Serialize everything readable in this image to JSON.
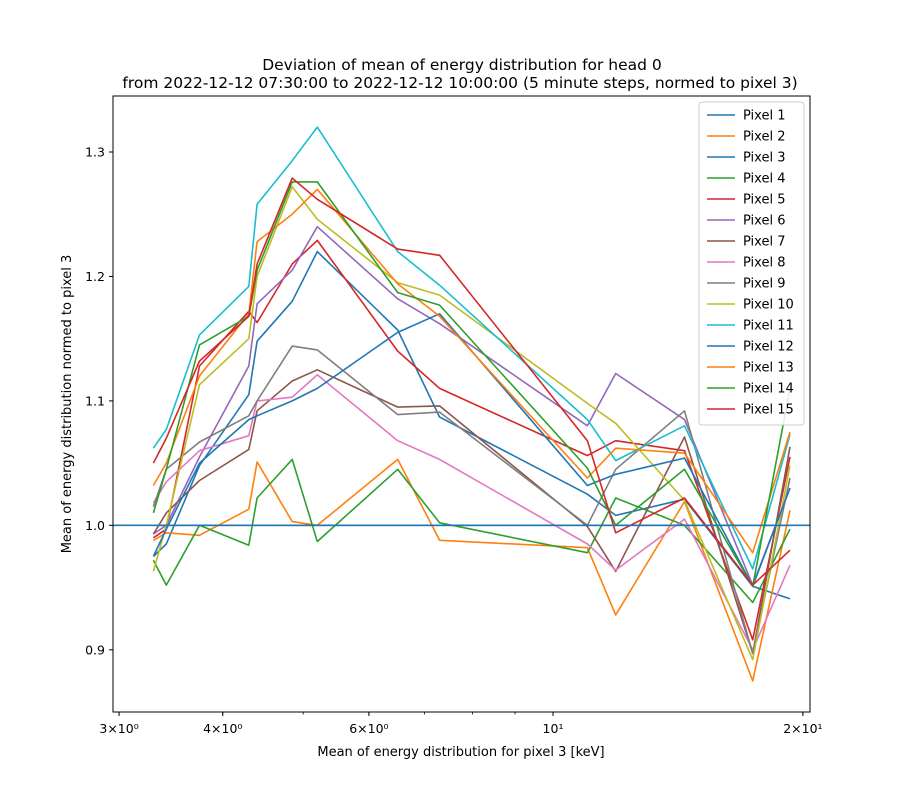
{
  "chart_data": {
    "type": "line",
    "title_line1": "Deviation of mean of energy distribution for head 0",
    "title_line2": "from 2022-12-12 07:30:00 to 2022-12-12 10:00:00 (5 minute steps, normed to pixel 3)",
    "xlabel": "Mean of energy distribution for pixel 3 [keV]",
    "ylabel": "Mean of energy distribution normed to pixel 3",
    "xscale": "log",
    "xlim": [
      2.95,
      20.4
    ],
    "ylim": [
      0.85,
      1.345
    ],
    "x_ticks": [
      {
        "value": 3,
        "label": "3×10⁰"
      },
      {
        "value": 4,
        "label": "4×10⁰"
      },
      {
        "value": 6,
        "label": "6×10⁰"
      },
      {
        "value": 10,
        "label": "10¹"
      },
      {
        "value": 20,
        "label": "2×10¹"
      }
    ],
    "y_ticks": [
      {
        "value": 0.9,
        "label": "0.9"
      },
      {
        "value": 1.0,
        "label": "1.0"
      },
      {
        "value": 1.1,
        "label": "1.1"
      },
      {
        "value": 1.2,
        "label": "1.2"
      },
      {
        "value": 1.3,
        "label": "1.3"
      }
    ],
    "hline": 1.0,
    "hline_color": "#1f77b4",
    "legend_position": "top-right",
    "grid": false,
    "series": [
      {
        "name": "Pixel 1",
        "color": "#1f77b4",
        "points": [
          [
            3.3,
            0.975
          ],
          [
            3.42,
            0.985
          ],
          [
            3.75,
            1.048
          ],
          [
            4.3,
            1.105
          ],
          [
            4.4,
            1.148
          ],
          [
            4.85,
            1.18
          ],
          [
            5.2,
            1.22
          ],
          [
            6.5,
            1.157
          ],
          [
            7.3,
            1.087
          ],
          [
            11.0,
            1.025
          ],
          [
            11.9,
            1.008
          ],
          [
            14.4,
            1.021
          ],
          [
            17.4,
            0.951
          ],
          [
            19.3,
            0.941
          ]
        ]
      },
      {
        "name": "Pixel 2",
        "color": "#ff7f0e",
        "points": [
          [
            3.3,
            0.988
          ],
          [
            3.42,
            0.994
          ],
          [
            3.75,
            0.992
          ],
          [
            4.3,
            1.013
          ],
          [
            4.4,
            1.051
          ],
          [
            4.85,
            1.003
          ],
          [
            5.2,
            1.0
          ],
          [
            6.5,
            1.053
          ],
          [
            7.3,
            0.988
          ],
          [
            11.0,
            0.982
          ],
          [
            11.9,
            0.928
          ],
          [
            14.4,
            1.019
          ],
          [
            17.4,
            0.875
          ],
          [
            19.3,
            1.012
          ]
        ]
      },
      {
        "name": "Pixel 3",
        "color": "#1f77b4",
        "points": [
          [
            3.3,
            1.0
          ],
          [
            19.3,
            1.0
          ]
        ]
      },
      {
        "name": "Pixel 4",
        "color": "#2ca02c",
        "points": [
          [
            3.3,
            0.972
          ],
          [
            3.42,
            0.952
          ],
          [
            3.75,
            1.0
          ],
          [
            4.3,
            0.984
          ],
          [
            4.4,
            1.022
          ],
          [
            4.85,
            1.053
          ],
          [
            5.2,
            0.987
          ],
          [
            6.5,
            1.045
          ],
          [
            7.3,
            1.002
          ],
          [
            11.0,
            0.978
          ],
          [
            11.9,
            1.022
          ],
          [
            14.4,
            1.0
          ],
          [
            17.4,
            0.938
          ],
          [
            19.3,
            0.997
          ]
        ]
      },
      {
        "name": "Pixel 5",
        "color": "#d62728",
        "points": [
          [
            3.3,
            0.99
          ],
          [
            3.42,
            0.997
          ],
          [
            3.75,
            1.128
          ],
          [
            4.3,
            1.172
          ],
          [
            4.4,
            1.163
          ],
          [
            4.85,
            1.21
          ],
          [
            5.2,
            1.229
          ],
          [
            6.5,
            1.14
          ],
          [
            7.3,
            1.11
          ],
          [
            11.0,
            1.056
          ],
          [
            11.9,
            1.068
          ],
          [
            14.4,
            1.06
          ],
          [
            17.4,
            0.908
          ],
          [
            19.3,
            1.055
          ]
        ]
      },
      {
        "name": "Pixel 6",
        "color": "#9467bd",
        "points": [
          [
            3.3,
            0.993
          ],
          [
            3.42,
            1.0
          ],
          [
            3.75,
            1.055
          ],
          [
            4.3,
            1.128
          ],
          [
            4.4,
            1.178
          ],
          [
            4.85,
            1.205
          ],
          [
            5.2,
            1.24
          ],
          [
            6.5,
            1.182
          ],
          [
            7.3,
            1.162
          ],
          [
            11.0,
            1.08
          ],
          [
            11.9,
            1.122
          ],
          [
            14.4,
            1.085
          ],
          [
            17.4,
            0.952
          ],
          [
            19.3,
            1.03
          ]
        ]
      },
      {
        "name": "Pixel 7",
        "color": "#8c564b",
        "points": [
          [
            3.3,
            0.993
          ],
          [
            3.42,
            1.01
          ],
          [
            3.75,
            1.036
          ],
          [
            4.3,
            1.061
          ],
          [
            4.4,
            1.092
          ],
          [
            4.85,
            1.116
          ],
          [
            5.2,
            1.125
          ],
          [
            6.5,
            1.095
          ],
          [
            7.3,
            1.096
          ],
          [
            11.0,
            0.999
          ],
          [
            11.9,
            0.963
          ],
          [
            14.4,
            1.071
          ],
          [
            17.4,
            0.897
          ],
          [
            19.3,
            1.063
          ]
        ]
      },
      {
        "name": "Pixel 8",
        "color": "#e377c2",
        "points": [
          [
            3.3,
            1.018
          ],
          [
            3.42,
            1.035
          ],
          [
            3.75,
            1.06
          ],
          [
            4.3,
            1.072
          ],
          [
            4.4,
            1.1
          ],
          [
            4.85,
            1.103
          ],
          [
            5.2,
            1.121
          ],
          [
            6.5,
            1.068
          ],
          [
            7.3,
            1.053
          ],
          [
            11.0,
            0.985
          ],
          [
            11.9,
            0.964
          ],
          [
            14.4,
            1.005
          ],
          [
            17.4,
            0.9
          ],
          [
            19.3,
            0.968
          ]
        ]
      },
      {
        "name": "Pixel 9",
        "color": "#7f7f7f",
        "points": [
          [
            3.3,
            1.015
          ],
          [
            3.42,
            1.045
          ],
          [
            3.75,
            1.067
          ],
          [
            4.3,
            1.088
          ],
          [
            4.4,
            1.1
          ],
          [
            4.85,
            1.144
          ],
          [
            5.2,
            1.141
          ],
          [
            6.5,
            1.089
          ],
          [
            7.3,
            1.091
          ],
          [
            11.0,
            1.0
          ],
          [
            11.9,
            1.045
          ],
          [
            14.4,
            1.092
          ],
          [
            17.4,
            0.897
          ],
          [
            19.3,
            1.038
          ]
        ]
      },
      {
        "name": "Pixel 10",
        "color": "#bcbd22",
        "points": [
          [
            3.3,
            0.963
          ],
          [
            3.42,
            1.0
          ],
          [
            3.75,
            1.113
          ],
          [
            4.3,
            1.15
          ],
          [
            4.4,
            1.2
          ],
          [
            4.85,
            1.272
          ],
          [
            5.2,
            1.246
          ],
          [
            6.5,
            1.195
          ],
          [
            7.3,
            1.185
          ],
          [
            11.0,
            1.098
          ],
          [
            11.9,
            1.082
          ],
          [
            14.4,
            1.02
          ],
          [
            17.4,
            0.892
          ],
          [
            19.3,
            1.048
          ]
        ]
      },
      {
        "name": "Pixel 11",
        "color": "#17becf",
        "points": [
          [
            3.3,
            1.062
          ],
          [
            3.42,
            1.077
          ],
          [
            3.75,
            1.153
          ],
          [
            4.3,
            1.192
          ],
          [
            4.4,
            1.258
          ],
          [
            4.85,
            1.293
          ],
          [
            5.2,
            1.32
          ],
          [
            6.5,
            1.22
          ],
          [
            7.3,
            1.193
          ],
          [
            11.0,
            1.085
          ],
          [
            11.9,
            1.052
          ],
          [
            14.4,
            1.08
          ],
          [
            17.4,
            0.965
          ],
          [
            19.3,
            1.073
          ]
        ]
      },
      {
        "name": "Pixel 12",
        "color": "#1f77b4",
        "points": [
          [
            3.3,
            0.975
          ],
          [
            3.42,
            0.997
          ],
          [
            3.75,
            1.05
          ],
          [
            4.3,
            1.085
          ],
          [
            4.4,
            1.088
          ],
          [
            4.85,
            1.1
          ],
          [
            5.2,
            1.11
          ],
          [
            6.5,
            1.155
          ],
          [
            7.3,
            1.17
          ],
          [
            11.0,
            1.032
          ],
          [
            11.9,
            1.041
          ],
          [
            14.4,
            1.054
          ],
          [
            17.4,
            0.951
          ],
          [
            19.3,
            1.03
          ]
        ]
      },
      {
        "name": "Pixel 13",
        "color": "#ff7f0e",
        "points": [
          [
            3.3,
            1.032
          ],
          [
            3.42,
            1.05
          ],
          [
            3.75,
            1.12
          ],
          [
            4.3,
            1.17
          ],
          [
            4.4,
            1.228
          ],
          [
            4.85,
            1.25
          ],
          [
            5.2,
            1.27
          ],
          [
            6.5,
            1.194
          ],
          [
            7.3,
            1.168
          ],
          [
            11.0,
            1.038
          ],
          [
            11.9,
            1.062
          ],
          [
            14.4,
            1.058
          ],
          [
            17.4,
            0.978
          ],
          [
            19.3,
            1.075
          ]
        ]
      },
      {
        "name": "Pixel 14",
        "color": "#2ca02c",
        "points": [
          [
            3.3,
            1.01
          ],
          [
            3.42,
            1.045
          ],
          [
            3.75,
            1.145
          ],
          [
            4.3,
            1.168
          ],
          [
            4.4,
            1.205
          ],
          [
            4.85,
            1.276
          ],
          [
            5.2,
            1.276
          ],
          [
            6.5,
            1.187
          ],
          [
            7.3,
            1.177
          ],
          [
            11.0,
            1.046
          ],
          [
            11.9,
            1.0
          ],
          [
            14.4,
            1.045
          ],
          [
            17.4,
            0.951
          ],
          [
            19.3,
            1.11
          ]
        ]
      },
      {
        "name": "Pixel 15",
        "color": "#d62728",
        "points": [
          [
            3.3,
            1.05
          ],
          [
            3.42,
            1.07
          ],
          [
            3.75,
            1.132
          ],
          [
            4.3,
            1.168
          ],
          [
            4.4,
            1.21
          ],
          [
            4.85,
            1.279
          ],
          [
            5.2,
            1.262
          ],
          [
            6.5,
            1.222
          ],
          [
            7.3,
            1.217
          ],
          [
            11.0,
            1.068
          ],
          [
            11.9,
            0.994
          ],
          [
            14.4,
            1.022
          ],
          [
            17.4,
            0.952
          ],
          [
            19.3,
            0.98
          ]
        ]
      }
    ]
  }
}
